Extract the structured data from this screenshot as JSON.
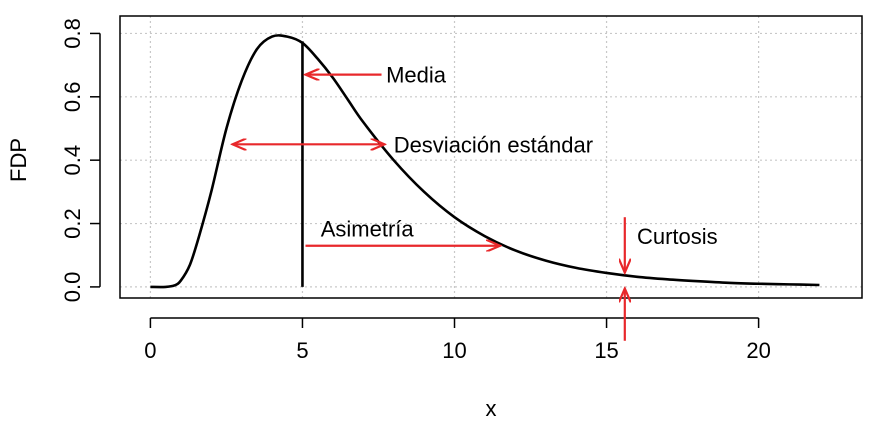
{
  "chart_data": {
    "type": "line",
    "title": "",
    "xlabel": "x",
    "ylabel": "FDP",
    "xlim": [
      0,
      22
    ],
    "ylim": [
      0,
      0.8
    ],
    "x_ticks": [
      0,
      5,
      10,
      15,
      20
    ],
    "y_ticks": [
      0.0,
      0.2,
      0.4,
      0.6,
      0.8
    ],
    "x_tick_labels": [
      "0",
      "5",
      "10",
      "15",
      "20"
    ],
    "y_tick_labels": [
      "0.0",
      "0.2",
      "0.4",
      "0.6",
      "0.8"
    ],
    "grid": true,
    "grid_style": "dotted",
    "curve_color": "#000000",
    "annotation_color": "#e8282b",
    "series": [
      {
        "x": [
          0,
          0.5,
          0.8,
          1,
          1.3,
          1.6,
          2,
          2.5,
          3,
          3.5,
          4,
          4.5,
          5,
          5.5,
          6,
          6.5,
          7,
          8,
          9,
          10,
          11,
          12,
          13,
          14,
          15,
          16,
          17,
          18,
          19,
          20,
          21,
          22
        ],
        "y": [
          0.0,
          0.0,
          0.005,
          0.02,
          0.07,
          0.16,
          0.3,
          0.5,
          0.65,
          0.75,
          0.79,
          0.79,
          0.77,
          0.72,
          0.66,
          0.59,
          0.52,
          0.4,
          0.3,
          0.22,
          0.16,
          0.115,
          0.083,
          0.06,
          0.044,
          0.032,
          0.024,
          0.018,
          0.013,
          0.01,
          0.008,
          0.006
        ]
      }
    ],
    "mean_line": {
      "x": 5,
      "y_top": 0.775
    },
    "annotations": {
      "media": {
        "label": "Media",
        "arrow_from": [
          7.6,
          0.67
        ],
        "arrow_to": [
          5.1,
          0.67
        ]
      },
      "desviacion": {
        "label": "Desviación estándar",
        "arrow_from": [
          2.7,
          0.45
        ],
        "arrow_to": [
          7.7,
          0.45
        ],
        "double_headed": true
      },
      "asimetria": {
        "label": "Asimetría",
        "arrow_from": [
          5.1,
          0.13
        ],
        "arrow_to": [
          11.5,
          0.13
        ]
      },
      "curtosis": {
        "label": "Curtosis",
        "arrow_down_from": [
          15.6,
          0.22
        ],
        "arrow_down_to": [
          15.6,
          0.045
        ],
        "arrow_up_from": [
          15.6,
          -0.17
        ],
        "arrow_up_to": [
          15.6,
          -0.005
        ]
      }
    }
  }
}
